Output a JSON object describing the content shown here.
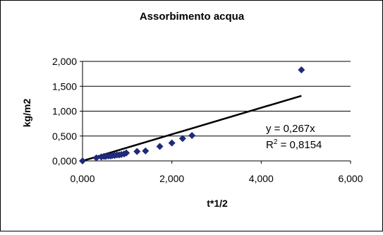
{
  "chart_data": {
    "type": "scatter",
    "title": "Assorbimento acqua",
    "xlabel": "t*1/2",
    "ylabel": "kg/m2",
    "xlim": [
      0,
      6
    ],
    "ylim": [
      0,
      2
    ],
    "xticks": [
      0,
      2,
      4,
      6
    ],
    "yticks": [
      0,
      0.5,
      1,
      1.5,
      2
    ],
    "xtick_labels": [
      "0,000",
      "2,000",
      "4,000",
      "6,000"
    ],
    "ytick_labels": [
      "0,000",
      "0,500",
      "1,000",
      "1,500",
      "2,000"
    ],
    "grid": "horizontal",
    "legend": "none",
    "marker": "diamond",
    "marker_color": "#1f2a78",
    "series": [
      {
        "x": [
          0.0,
          0.31,
          0.42,
          0.48,
          0.52,
          0.58,
          0.63,
          0.67,
          0.72,
          0.77,
          0.82,
          0.87,
          0.93,
          0.98,
          1.22,
          1.41,
          1.73,
          2.0,
          2.24,
          2.45,
          4.9
        ],
        "y": [
          0.0,
          0.06,
          0.08,
          0.09,
          0.09,
          0.1,
          0.1,
          0.11,
          0.11,
          0.12,
          0.12,
          0.13,
          0.14,
          0.16,
          0.19,
          0.2,
          0.29,
          0.36,
          0.45,
          0.51,
          1.83
        ]
      }
    ],
    "trendline": {
      "type": "linear",
      "slope": 0.267,
      "intercept": 0,
      "x_range": [
        0,
        4.9
      ],
      "color": "#000000",
      "equation": "y = 0,267x",
      "r2_prefix": "R",
      "r2_sup": "2",
      "r2_value": " = 0,8154"
    }
  }
}
